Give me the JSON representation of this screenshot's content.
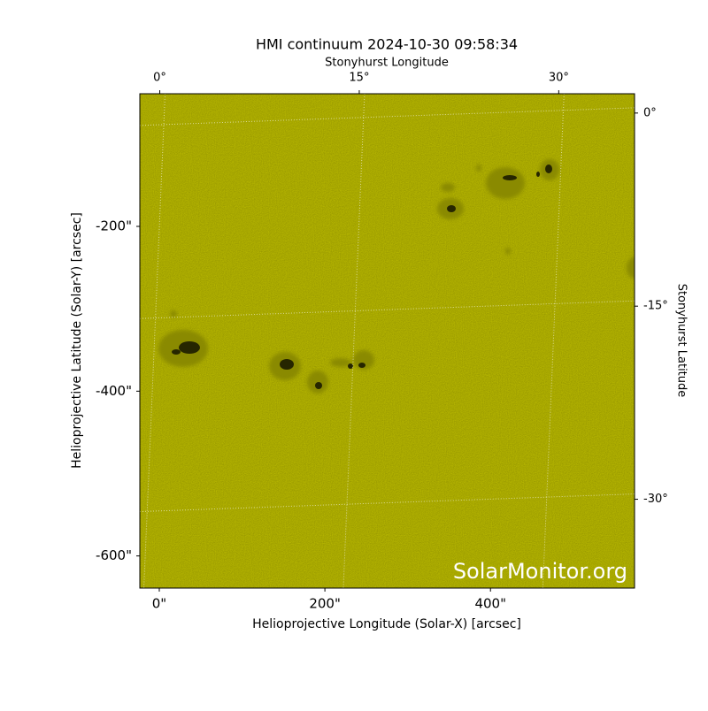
{
  "chart_data": {
    "type": "image",
    "title": "HMI continuum 2024-10-30 09:58:34",
    "xlabel": "Helioprojective Longitude (Solar-X) [arcsec]",
    "ylabel": "Helioprojective Latitude (Solar-Y) [arcsec]",
    "x2label": "Stonyhurst Longitude",
    "y2label": "Stonyhurst Latitude",
    "xlim": [
      -23.5,
      574
    ],
    "ylim": [
      -639,
      -39
    ],
    "xticks": [
      {
        "value": 0,
        "label": "0\""
      },
      {
        "value": 200,
        "label": "200\""
      },
      {
        "value": 400,
        "label": "400\""
      }
    ],
    "yticks": [
      {
        "value": -200,
        "label": "-200\""
      },
      {
        "value": -400,
        "label": "-400\""
      },
      {
        "value": -600,
        "label": "-600\""
      }
    ],
    "x2lim": [
      -1.5,
      35.7
    ],
    "x2ticks": [
      {
        "value": 0,
        "label": "0°"
      },
      {
        "value": 15,
        "label": "15°"
      },
      {
        "value": 30,
        "label": "30°"
      }
    ],
    "y2lim": [
      1.5,
      -36.9
    ],
    "y2ticks": [
      {
        "value": 0,
        "label": "0°"
      },
      {
        "value": -15,
        "label": "-15°"
      },
      {
        "value": -30,
        "label": "-30°"
      }
    ],
    "grid": true,
    "color": "#cccc00",
    "watermark": "SolarMonitor.org"
  }
}
